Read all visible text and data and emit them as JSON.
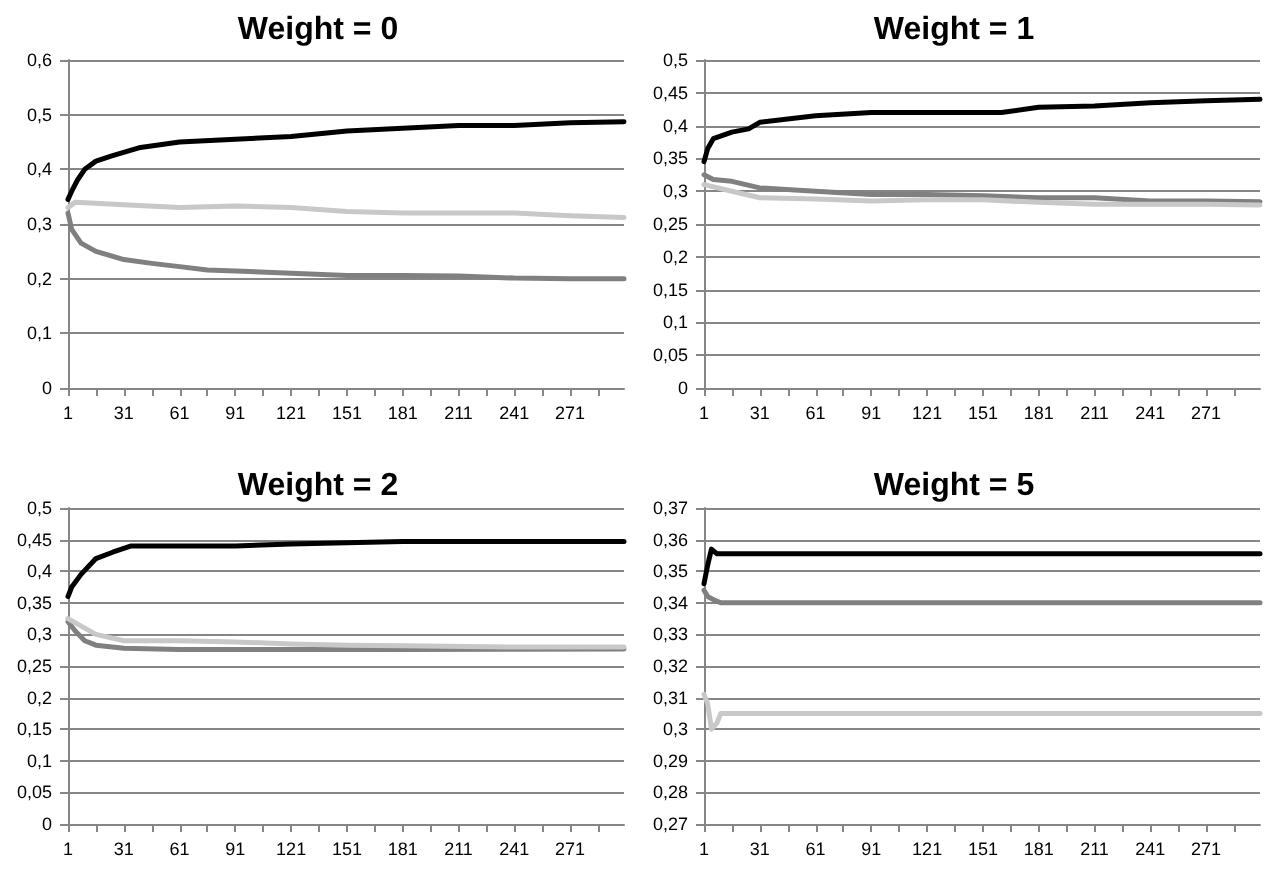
{
  "chart_data": [
    {
      "type": "line",
      "title": "Weight = 0",
      "grid": "y",
      "marker": "none",
      "xlim": [
        1,
        300
      ],
      "xticks": [
        1,
        {
          "value": 16,
          "label": null
        },
        31,
        {
          "value": 46,
          "label": null
        },
        61,
        {
          "value": 76,
          "label": null
        },
        91,
        {
          "value": 106,
          "label": null
        },
        121,
        {
          "value": 136,
          "label": null
        },
        151,
        {
          "value": 166,
          "label": null
        },
        181,
        {
          "value": 196,
          "label": null
        },
        211,
        {
          "value": 226,
          "label": null
        },
        241,
        {
          "value": 256,
          "label": null
        },
        271,
        {
          "value": 286,
          "label": null
        }
      ],
      "ylim": [
        0,
        0.6
      ],
      "yticks": [
        {
          "value": 0,
          "label": "0"
        },
        {
          "value": 0.1,
          "label": "0,1"
        },
        {
          "value": 0.2,
          "label": "0,2"
        },
        {
          "value": 0.3,
          "label": "0,3"
        },
        {
          "value": 0.4,
          "label": "0,4"
        },
        {
          "value": 0.5,
          "label": "0,5"
        },
        {
          "value": 0.6,
          "label": "0,6"
        }
      ],
      "series": [
        {
          "color": "#000000",
          "x": [
            1,
            3,
            6,
            10,
            16,
            25,
            40,
            61,
            91,
            121,
            151,
            181,
            211,
            241,
            271,
            300
          ],
          "values": [
            0.345,
            0.36,
            0.38,
            0.4,
            0.415,
            0.425,
            0.44,
            0.45,
            0.455,
            0.46,
            0.47,
            0.475,
            0.48,
            0.48,
            0.485,
            0.487
          ]
        },
        {
          "color": "#808080",
          "x": [
            1,
            3,
            8,
            16,
            31,
            46,
            61,
            76,
            91,
            121,
            151,
            181,
            211,
            241,
            271,
            300
          ],
          "values": [
            0.32,
            0.29,
            0.265,
            0.25,
            0.235,
            0.228,
            0.222,
            0.216,
            0.214,
            0.21,
            0.206,
            0.206,
            0.205,
            0.201,
            0.2,
            0.2
          ]
        },
        {
          "color": "#c8c8c8",
          "x": [
            1,
            5,
            31,
            61,
            91,
            121,
            151,
            181,
            211,
            241,
            271,
            300
          ],
          "values": [
            0.33,
            0.34,
            0.335,
            0.33,
            0.333,
            0.33,
            0.323,
            0.32,
            0.32,
            0.32,
            0.315,
            0.312
          ]
        }
      ]
    },
    {
      "type": "line",
      "title": "Weight = 1",
      "grid": "y",
      "marker": "none",
      "xlim": [
        1,
        300
      ],
      "xticks": [
        1,
        {
          "value": 16,
          "label": null
        },
        31,
        {
          "value": 46,
          "label": null
        },
        61,
        {
          "value": 76,
          "label": null
        },
        91,
        {
          "value": 106,
          "label": null
        },
        121,
        {
          "value": 136,
          "label": null
        },
        151,
        {
          "value": 166,
          "label": null
        },
        181,
        {
          "value": 196,
          "label": null
        },
        211,
        {
          "value": 226,
          "label": null
        },
        241,
        {
          "value": 256,
          "label": null
        },
        271,
        {
          "value": 286,
          "label": null
        }
      ],
      "ylim": [
        0,
        0.5
      ],
      "yticks": [
        {
          "value": 0,
          "label": "0"
        },
        {
          "value": 0.05,
          "label": "0,05"
        },
        {
          "value": 0.1,
          "label": "0,1"
        },
        {
          "value": 0.15,
          "label": "0,15"
        },
        {
          "value": 0.2,
          "label": "0,2"
        },
        {
          "value": 0.25,
          "label": "0,25"
        },
        {
          "value": 0.3,
          "label": "0,3"
        },
        {
          "value": 0.35,
          "label": "0,35"
        },
        {
          "value": 0.4,
          "label": "0,4"
        },
        {
          "value": 0.45,
          "label": "0,45"
        },
        {
          "value": 0.5,
          "label": "0,5"
        }
      ],
      "series": [
        {
          "color": "#000000",
          "x": [
            1,
            3,
            6,
            16,
            25,
            31,
            61,
            91,
            121,
            161,
            181,
            211,
            241,
            271,
            300
          ],
          "values": [
            0.345,
            0.365,
            0.38,
            0.39,
            0.395,
            0.405,
            0.415,
            0.42,
            0.42,
            0.42,
            0.428,
            0.43,
            0.435,
            0.438,
            0.44
          ]
        },
        {
          "color": "#808080",
          "x": [
            1,
            6,
            16,
            31,
            61,
            91,
            121,
            151,
            181,
            211,
            241,
            271,
            300
          ],
          "values": [
            0.325,
            0.318,
            0.315,
            0.305,
            0.3,
            0.295,
            0.295,
            0.293,
            0.29,
            0.29,
            0.285,
            0.285,
            0.284
          ]
        },
        {
          "color": "#c8c8c8",
          "x": [
            1,
            16,
            31,
            61,
            91,
            121,
            151,
            181,
            211,
            241,
            271,
            300
          ],
          "values": [
            0.31,
            0.3,
            0.29,
            0.288,
            0.285,
            0.287,
            0.287,
            0.283,
            0.28,
            0.28,
            0.28,
            0.279
          ]
        }
      ]
    },
    {
      "type": "line",
      "title": "Weight = 2",
      "grid": "y",
      "marker": "none",
      "xlim": [
        1,
        300
      ],
      "xticks": [
        1,
        {
          "value": 16,
          "label": null
        },
        31,
        {
          "value": 46,
          "label": null
        },
        61,
        {
          "value": 76,
          "label": null
        },
        91,
        {
          "value": 106,
          "label": null
        },
        121,
        {
          "value": 136,
          "label": null
        },
        151,
        {
          "value": 166,
          "label": null
        },
        181,
        {
          "value": 196,
          "label": null
        },
        211,
        {
          "value": 226,
          "label": null
        },
        241,
        {
          "value": 256,
          "label": null
        },
        271,
        {
          "value": 286,
          "label": null
        }
      ],
      "ylim": [
        0,
        0.5
      ],
      "yticks": [
        {
          "value": 0,
          "label": "0"
        },
        {
          "value": 0.05,
          "label": "0,05"
        },
        {
          "value": 0.1,
          "label": "0,1"
        },
        {
          "value": 0.15,
          "label": "0,15"
        },
        {
          "value": 0.2,
          "label": "0,2"
        },
        {
          "value": 0.25,
          "label": "0,25"
        },
        {
          "value": 0.3,
          "label": "0,3"
        },
        {
          "value": 0.35,
          "label": "0,35"
        },
        {
          "value": 0.4,
          "label": "0,4"
        },
        {
          "value": 0.45,
          "label": "0,45"
        },
        {
          "value": 0.5,
          "label": "0,5"
        }
      ],
      "series": [
        {
          "color": "#000000",
          "x": [
            1,
            3,
            8,
            16,
            25,
            35,
            91,
            121,
            151,
            181,
            300
          ],
          "values": [
            0.36,
            0.375,
            0.395,
            0.42,
            0.43,
            0.44,
            0.44,
            0.443,
            0.445,
            0.447,
            0.447
          ]
        },
        {
          "color": "#808080",
          "x": [
            1,
            5,
            10,
            16,
            31,
            61,
            121,
            181,
            300
          ],
          "values": [
            0.32,
            0.305,
            0.29,
            0.283,
            0.278,
            0.276,
            0.276,
            0.276,
            0.277
          ]
        },
        {
          "color": "#c8c8c8",
          "x": [
            1,
            10,
            16,
            31,
            61,
            91,
            121,
            151,
            181,
            241,
            300
          ],
          "values": [
            0.325,
            0.31,
            0.3,
            0.29,
            0.29,
            0.288,
            0.285,
            0.283,
            0.282,
            0.28,
            0.28
          ]
        }
      ]
    },
    {
      "type": "line",
      "title": "Weight = 5",
      "grid": "y",
      "marker": "none",
      "xlim": [
        1,
        300
      ],
      "xticks": [
        1,
        {
          "value": 16,
          "label": null
        },
        31,
        {
          "value": 46,
          "label": null
        },
        61,
        {
          "value": 76,
          "label": null
        },
        91,
        {
          "value": 106,
          "label": null
        },
        121,
        {
          "value": 136,
          "label": null
        },
        151,
        {
          "value": 166,
          "label": null
        },
        181,
        {
          "value": 196,
          "label": null
        },
        211,
        {
          "value": 226,
          "label": null
        },
        241,
        {
          "value": 256,
          "label": null
        },
        271,
        {
          "value": 286,
          "label": null
        }
      ],
      "ylim": [
        0.27,
        0.37
      ],
      "yticks": [
        {
          "value": 0.27,
          "label": "0,27"
        },
        {
          "value": 0.28,
          "label": "0,28"
        },
        {
          "value": 0.29,
          "label": "0,29"
        },
        {
          "value": 0.3,
          "label": "0,3"
        },
        {
          "value": 0.31,
          "label": "0,31"
        },
        {
          "value": 0.32,
          "label": "0,32"
        },
        {
          "value": 0.33,
          "label": "0,33"
        },
        {
          "value": 0.34,
          "label": "0,34"
        },
        {
          "value": 0.35,
          "label": "0,35"
        },
        {
          "value": 0.36,
          "label": "0,36"
        },
        {
          "value": 0.37,
          "label": "0,37"
        }
      ],
      "series": [
        {
          "color": "#000000",
          "x": [
            1,
            3,
            5,
            8,
            300
          ],
          "values": [
            0.346,
            0.352,
            0.357,
            0.3555,
            0.3555
          ]
        },
        {
          "color": "#808080",
          "x": [
            1,
            3,
            6,
            10,
            300
          ],
          "values": [
            0.344,
            0.342,
            0.341,
            0.34,
            0.34
          ]
        },
        {
          "color": "#c8c8c8",
          "x": [
            1,
            3,
            5,
            8,
            10,
            300
          ],
          "values": [
            0.311,
            0.308,
            0.3,
            0.302,
            0.305,
            0.305
          ]
        }
      ]
    }
  ]
}
